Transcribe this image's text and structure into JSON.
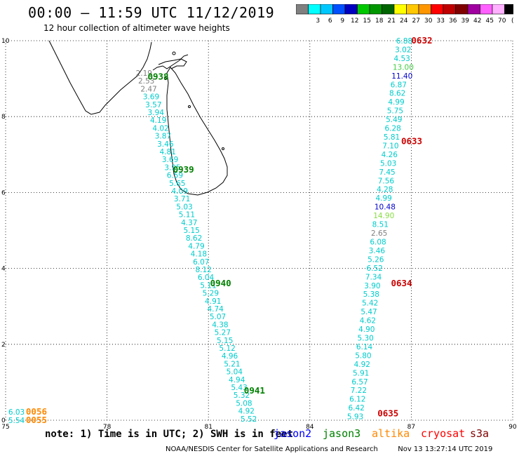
{
  "header": {
    "title": "00:00 – 11:59 UTC 11/12/2019",
    "subtitle": "12 hour collection of altimeter wave heights"
  },
  "legend": {
    "unit": "(ft)",
    "swatches": [
      {
        "color": "#808080",
        "label": ""
      },
      {
        "color": "#00ffff",
        "label": "3"
      },
      {
        "color": "#00c8ff",
        "label": "6"
      },
      {
        "color": "#0050ff",
        "label": "9"
      },
      {
        "color": "#0000c0",
        "label": "12"
      },
      {
        "color": "#00c800",
        "label": "15"
      },
      {
        "color": "#009600",
        "label": "18"
      },
      {
        "color": "#006400",
        "label": "21"
      },
      {
        "color": "#ffff00",
        "label": "24"
      },
      {
        "color": "#ffc800",
        "label": "27"
      },
      {
        "color": "#ff9600",
        "label": "30"
      },
      {
        "color": "#ff0000",
        "label": "33"
      },
      {
        "color": "#c00000",
        "label": "36"
      },
      {
        "color": "#800000",
        "label": "39"
      },
      {
        "color": "#a000a0",
        "label": "42"
      },
      {
        "color": "#ff60ff",
        "label": "45"
      },
      {
        "color": "#ffb0ff",
        "label": "70"
      },
      {
        "color": "#000000",
        "label": ""
      }
    ]
  },
  "map": {
    "lon_range": [
      75,
      90
    ],
    "lat_range": [
      0,
      10
    ],
    "lon_ticks": [
      "75",
      "78",
      "81",
      "84",
      "87",
      "90"
    ],
    "lat_ticks": [
      "0",
      "2",
      "4",
      "6",
      "8",
      "10"
    ],
    "grid": "dotted"
  },
  "tracks": [
    {
      "id": "track-west",
      "time_labels": [
        {
          "text": "0938",
          "lon": 79.2,
          "lat": 9.05,
          "color": "#008000"
        },
        {
          "text": "0939",
          "lon": 79.95,
          "lat": 6.6,
          "color": "#008000"
        },
        {
          "text": "0940",
          "lon": 81.05,
          "lat": 3.6,
          "color": "#008000"
        },
        {
          "text": "0941",
          "lon": 82.05,
          "lat": 0.78,
          "color": "#008000"
        }
      ],
      "start": {
        "lon": 78.85,
        "lat": 9.15
      },
      "end": {
        "lon": 81.95,
        "lat": 0.04
      },
      "values": [
        {
          "v": "2.19",
          "c": "#808080"
        },
        {
          "v": "2.53",
          "c": "#808080"
        },
        {
          "v": "2.47",
          "c": "#808080"
        },
        {
          "v": "3.69",
          "c": "#00cccc"
        },
        {
          "v": "3.57",
          "c": "#00cccc"
        },
        {
          "v": "3.94",
          "c": "#00cccc"
        },
        {
          "v": "4.19",
          "c": "#00cccc"
        },
        {
          "v": "4.02",
          "c": "#00cccc"
        },
        {
          "v": "3.87",
          "c": "#00cccc"
        },
        {
          "v": "3.46",
          "c": "#00cccc"
        },
        {
          "v": "4.81",
          "c": "#00cccc"
        },
        {
          "v": "3.69",
          "c": "#00cccc"
        },
        {
          "v": "3.95",
          "c": "#00cccc"
        },
        {
          "v": "6.59",
          "c": "#00cccc"
        },
        {
          "v": "5.65",
          "c": "#00cccc"
        },
        {
          "v": "4.09",
          "c": "#00cccc"
        },
        {
          "v": "3.71",
          "c": "#00cccc"
        },
        {
          "v": "5.03",
          "c": "#00cccc"
        },
        {
          "v": "5.11",
          "c": "#00cccc"
        },
        {
          "v": "4.37",
          "c": "#00cccc"
        },
        {
          "v": "5.15",
          "c": "#00cccc"
        },
        {
          "v": "8.62",
          "c": "#00cccc"
        },
        {
          "v": "4.79",
          "c": "#00cccc"
        },
        {
          "v": "4.18",
          "c": "#00cccc"
        },
        {
          "v": "6.07",
          "c": "#00cccc"
        },
        {
          "v": "8.12",
          "c": "#00cccc"
        },
        {
          "v": "6.04",
          "c": "#00cccc"
        },
        {
          "v": "5.11",
          "c": "#00cccc"
        },
        {
          "v": "5.29",
          "c": "#00cccc"
        },
        {
          "v": "4.91",
          "c": "#00cccc"
        },
        {
          "v": "4.74",
          "c": "#00cccc"
        },
        {
          "v": "5.07",
          "c": "#00cccc"
        },
        {
          "v": "4.38",
          "c": "#00cccc"
        },
        {
          "v": "5.27",
          "c": "#00cccc"
        },
        {
          "v": "5.15",
          "c": "#00cccc"
        },
        {
          "v": "5.12",
          "c": "#00cccc"
        },
        {
          "v": "4.96",
          "c": "#00cccc"
        },
        {
          "v": "5.21",
          "c": "#00cccc"
        },
        {
          "v": "5.04",
          "c": "#00cccc"
        },
        {
          "v": "4.94",
          "c": "#00cccc"
        },
        {
          "v": "5.43",
          "c": "#00cccc"
        },
        {
          "v": "5.32",
          "c": "#00cccc"
        },
        {
          "v": "5.08",
          "c": "#00cccc"
        },
        {
          "v": "4.92",
          "c": "#00cccc"
        },
        {
          "v": "5.52",
          "c": "#00cccc"
        }
      ]
    },
    {
      "id": "track-east",
      "time_labels": [
        {
          "text": "0632",
          "lon": 87.0,
          "lat": 10.0,
          "color": "#cc0000"
        },
        {
          "text": "0633",
          "lon": 86.7,
          "lat": 7.35,
          "color": "#cc0000"
        },
        {
          "text": "0634",
          "lon": 86.4,
          "lat": 3.6,
          "color": "#cc0000"
        },
        {
          "text": "0635",
          "lon": 86.0,
          "lat": 0.18,
          "color": "#cc0000"
        }
      ],
      "start": {
        "lon": 86.55,
        "lat": 10.0
      },
      "end": {
        "lon": 85.1,
        "lat": 0.1
      },
      "values": [
        {
          "v": "6.88",
          "c": "#00cccc"
        },
        {
          "v": "3.02",
          "c": "#00cccc"
        },
        {
          "v": "4.53",
          "c": "#00cccc"
        },
        {
          "v": "13.00",
          "c": "#44cc44"
        },
        {
          "v": "11.40",
          "c": "#0000cc"
        },
        {
          "v": "6.87",
          "c": "#00cccc"
        },
        {
          "v": "8.62",
          "c": "#00cccc"
        },
        {
          "v": "4.99",
          "c": "#00cccc"
        },
        {
          "v": "5.75",
          "c": "#00cccc"
        },
        {
          "v": "5.49",
          "c": "#00cccc"
        },
        {
          "v": "6.28",
          "c": "#00cccc"
        },
        {
          "v": "5.81",
          "c": "#00cccc"
        },
        {
          "v": "7.10",
          "c": "#00cccc"
        },
        {
          "v": "4.26",
          "c": "#00cccc"
        },
        {
          "v": "5.03",
          "c": "#00cccc"
        },
        {
          "v": "7.45",
          "c": "#00cccc"
        },
        {
          "v": "7.56",
          "c": "#00cccc"
        },
        {
          "v": "4.28",
          "c": "#00cccc"
        },
        {
          "v": "4.99",
          "c": "#00cccc"
        },
        {
          "v": "10.48",
          "c": "#0000cc"
        },
        {
          "v": "14.90",
          "c": "#88dd44"
        },
        {
          "v": "8.51",
          "c": "#00cccc"
        },
        {
          "v": "2.65",
          "c": "#808080"
        },
        {
          "v": "6.08",
          "c": "#00cccc"
        },
        {
          "v": "3.46",
          "c": "#00cccc"
        },
        {
          "v": "5.26",
          "c": "#00cccc"
        },
        {
          "v": "6.52",
          "c": "#00cccc"
        },
        {
          "v": "7.34",
          "c": "#00cccc"
        },
        {
          "v": "3.90",
          "c": "#00cccc"
        },
        {
          "v": "5.38",
          "c": "#00cccc"
        },
        {
          "v": "5.42",
          "c": "#00cccc"
        },
        {
          "v": "5.47",
          "c": "#00cccc"
        },
        {
          "v": "4.62",
          "c": "#00cccc"
        },
        {
          "v": "4.90",
          "c": "#00cccc"
        },
        {
          "v": "5.30",
          "c": "#00cccc"
        },
        {
          "v": "6.14",
          "c": "#00cccc"
        },
        {
          "v": "5.80",
          "c": "#00cccc"
        },
        {
          "v": "4.92",
          "c": "#00cccc"
        },
        {
          "v": "5.91",
          "c": "#00cccc"
        },
        {
          "v": "6.57",
          "c": "#00cccc"
        },
        {
          "v": "7.22",
          "c": "#00cccc"
        },
        {
          "v": "6.12",
          "c": "#00cccc"
        },
        {
          "v": "6.42",
          "c": "#00cccc"
        },
        {
          "v": "5.93",
          "c": "#00cccc"
        }
      ]
    },
    {
      "id": "track-corner",
      "time_labels": [
        {
          "text": "0056",
          "lon": 75.6,
          "lat": 0.22,
          "color": "#ff8800"
        },
        {
          "text": "0055",
          "lon": 75.6,
          "lat": 0.0,
          "color": "#ff8800"
        }
      ],
      "start": {
        "lon": 75.08,
        "lat": 0.22
      },
      "end": {
        "lon": 75.08,
        "lat": 0.0
      },
      "values": [
        {
          "v": "6.03",
          "c": "#00cccc"
        },
        {
          "v": "5.54",
          "c": "#00cccc"
        }
      ]
    }
  ],
  "footer": {
    "note": "note: 1) Time is in UTC; 2) SWH is in feet",
    "satellites": [
      {
        "name": "jason2",
        "color": "#0000ff"
      },
      {
        "name": "jason3",
        "color": "#008000"
      },
      {
        "name": "altika",
        "color": "#ff8800"
      },
      {
        "name": "cryosat",
        "color": "#ff0000"
      },
      {
        "name": "s3a",
        "color": "#800000"
      }
    ],
    "credit": "NOAA/NESDIS Center for Satellite Applications and Research",
    "timestamp": "Nov 13 13:27:14 UTC 2019"
  }
}
